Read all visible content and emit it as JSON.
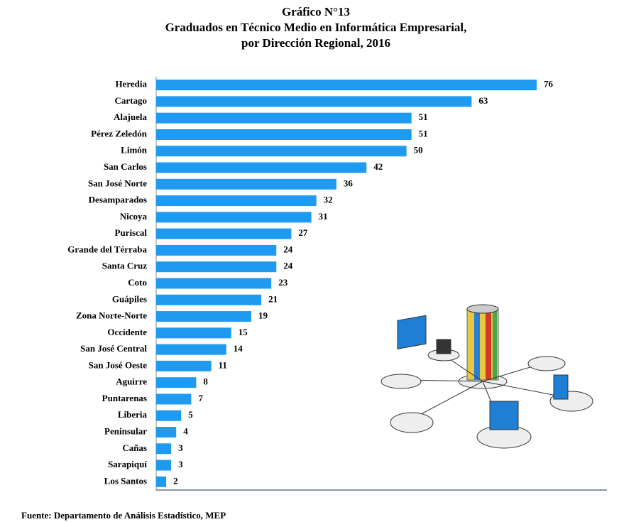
{
  "chart_data": {
    "type": "bar",
    "orientation": "horizontal",
    "title": [
      "Gráfico N°13",
      "Graduados en Técnico Medio en Informática Empresarial,",
      "por Dirección Regional, 2016"
    ],
    "categories": [
      "Heredia",
      "Cartago",
      "Alajuela",
      "Pérez Zeledón",
      "Limón",
      "San Carlos",
      "San José Norte",
      "Desamparados",
      "Nicoya",
      "Puriscal",
      "Grande del Térraba",
      "Santa Cruz",
      "Coto",
      "Guápiles",
      "Zona Norte-Norte",
      "Occidente",
      "San José Central",
      "San José Oeste",
      "Aguirre",
      "Puntarenas",
      "Liberia",
      "Peninsular",
      "Cañas",
      "Sarapiquí",
      "Los Santos"
    ],
    "values": [
      76,
      63,
      51,
      51,
      50,
      42,
      36,
      32,
      31,
      27,
      24,
      24,
      23,
      21,
      19,
      15,
      14,
      11,
      8,
      7,
      5,
      4,
      3,
      3,
      2
    ],
    "color": "#1e9bf0",
    "source": "Fuente: Departamento de Análisis Estadístico, MEP"
  }
}
